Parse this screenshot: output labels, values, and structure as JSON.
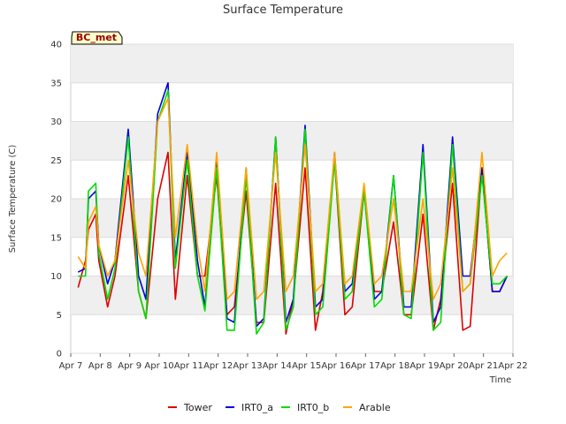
{
  "chart_data": {
    "type": "line",
    "title": "Surface Temperature",
    "ylabel": "Surface Temperature (C)",
    "xlabel": "Time",
    "annotation": "BC_met",
    "ylim": [
      0,
      40
    ],
    "xlim": [
      0,
      15
    ],
    "yticks": [
      0,
      5,
      10,
      15,
      20,
      25,
      30,
      35,
      40
    ],
    "xticks": [
      {
        "x": 0,
        "label": "Apr 7"
      },
      {
        "x": 1,
        "label": "Apr 8"
      },
      {
        "x": 2,
        "label": "Apr 9"
      },
      {
        "x": 3,
        "label": "Apr 10"
      },
      {
        "x": 4,
        "label": "Apr 11"
      },
      {
        "x": 5,
        "label": "Apr 12"
      },
      {
        "x": 6,
        "label": "Apr 13"
      },
      {
        "x": 7,
        "label": "Apr 14"
      },
      {
        "x": 8,
        "label": "Apr 15"
      },
      {
        "x": 9,
        "label": "Apr 16"
      },
      {
        "x": 10,
        "label": "Apr 17"
      },
      {
        "x": 11,
        "label": "Apr 18"
      },
      {
        "x": 12,
        "label": "Apr 19"
      },
      {
        "x": 13,
        "label": "Apr 20"
      },
      {
        "x": 14,
        "label": "Apr 21"
      },
      {
        "x": 15,
        "label": "Apr 22"
      }
    ],
    "grid": true,
    "legend_position": "bottom",
    "series": [
      {
        "name": "Tower",
        "color": "#dd0000",
        "x": [
          0.25,
          0.5,
          0.6,
          0.85,
          0.95,
          1.25,
          1.5,
          1.95,
          2.3,
          2.55,
          2.95,
          3.3,
          3.55,
          3.95,
          4.3,
          4.55,
          4.95,
          5.3,
          5.55,
          5.95,
          6.3,
          6.55,
          6.95,
          7.3,
          7.55,
          7.95,
          8.3,
          8.55,
          8.95,
          9.3,
          9.55,
          9.95,
          10.3,
          10.55,
          10.95,
          11.3,
          11.55,
          11.95,
          12.3,
          12.55,
          12.95,
          13.3,
          13.55,
          13.95,
          14.3,
          14.55,
          14.8
        ],
        "y": [
          8.5,
          12,
          16,
          18,
          12,
          6,
          10,
          23,
          8,
          4.5,
          20,
          26,
          7,
          23,
          10,
          10,
          23,
          5,
          6,
          21,
          4,
          4,
          22,
          2.5,
          7,
          24,
          3,
          8,
          25,
          5,
          6,
          21,
          8,
          8,
          17,
          5,
          5,
          18,
          3,
          7,
          22,
          3,
          3.5,
          24,
          8,
          8,
          10
        ]
      },
      {
        "name": "IRT0_a",
        "color": "#0000dd",
        "x": [
          0.25,
          0.5,
          0.6,
          0.85,
          0.95,
          1.25,
          1.5,
          1.95,
          2.3,
          2.55,
          2.95,
          3.3,
          3.55,
          3.95,
          4.3,
          4.55,
          4.95,
          5.3,
          5.55,
          5.95,
          6.3,
          6.55,
          6.95,
          7.3,
          7.55,
          7.95,
          8.3,
          8.55,
          8.95,
          9.3,
          9.55,
          9.95,
          10.3,
          10.55,
          10.95,
          11.3,
          11.55,
          11.95,
          12.3,
          12.55,
          12.95,
          13.3,
          13.55,
          13.95,
          14.3,
          14.55,
          14.8
        ],
        "y": [
          10.5,
          11,
          20,
          21,
          14,
          9,
          12,
          29,
          10,
          7,
          31,
          35,
          12,
          26,
          12,
          6,
          25,
          4.5,
          4,
          24,
          3.5,
          4.5,
          28,
          4,
          7,
          29.5,
          6,
          7,
          26,
          8,
          9,
          21,
          7,
          8,
          23,
          6,
          6,
          27,
          4,
          6,
          28,
          10,
          10,
          24,
          8,
          8,
          10
        ]
      },
      {
        "name": "IRT0_b",
        "color": "#00dd00",
        "x": [
          0.25,
          0.5,
          0.6,
          0.85,
          0.95,
          1.25,
          1.5,
          1.95,
          2.3,
          2.55,
          2.95,
          3.3,
          3.55,
          3.95,
          4.3,
          4.55,
          4.95,
          5.3,
          5.55,
          5.95,
          6.3,
          6.55,
          6.95,
          7.3,
          7.55,
          7.95,
          8.3,
          8.55,
          8.95,
          9.3,
          9.55,
          9.95,
          10.3,
          10.55,
          10.95,
          11.3,
          11.55,
          11.95,
          12.3,
          12.55,
          12.95,
          13.3,
          13.55,
          13.95,
          14.3,
          14.55,
          14.8
        ],
        "y": [
          10,
          10,
          21,
          22,
          13,
          7,
          11,
          28,
          8,
          4.5,
          30,
          34,
          11,
          25,
          10,
          5.5,
          24,
          3,
          3,
          23,
          2.5,
          4,
          28,
          3,
          6,
          29,
          5,
          6,
          25,
          7,
          8,
          21,
          6,
          7,
          23,
          5,
          4.5,
          26,
          3,
          4,
          27,
          8,
          9,
          23,
          9,
          9,
          10
        ]
      },
      {
        "name": "Arable",
        "color": "#ffa500",
        "x": [
          0.25,
          0.5,
          0.6,
          0.85,
          0.95,
          1.25,
          1.5,
          1.95,
          2.3,
          2.55,
          2.95,
          3.3,
          3.55,
          3.95,
          4.3,
          4.55,
          4.95,
          5.3,
          5.55,
          5.95,
          6.3,
          6.55,
          6.95,
          7.3,
          7.55,
          7.95,
          8.3,
          8.55,
          8.95,
          9.3,
          9.55,
          9.95,
          10.3,
          10.55,
          10.95,
          11.3,
          11.55,
          11.95,
          12.3,
          12.55,
          12.95,
          13.3,
          13.55,
          13.95,
          14.3,
          14.55,
          14.8
        ],
        "y": [
          12.5,
          11,
          17,
          19,
          14,
          10,
          12,
          25,
          13,
          10,
          30,
          33,
          15,
          27,
          14,
          8,
          26,
          7,
          8,
          24,
          7,
          8,
          26,
          8,
          10,
          27,
          8,
          9,
          26,
          9,
          10,
          22,
          9,
          10,
          20,
          8,
          8,
          20,
          7,
          9,
          24,
          8,
          9,
          26,
          10,
          12,
          13
        ]
      }
    ]
  }
}
